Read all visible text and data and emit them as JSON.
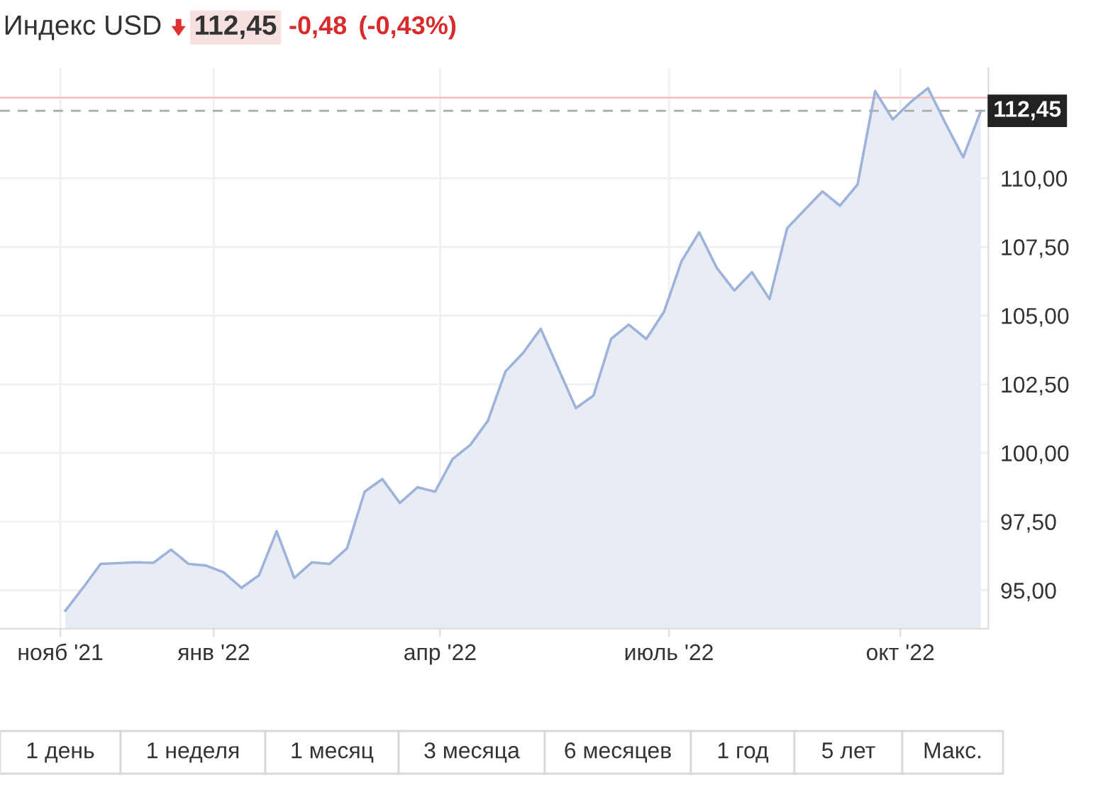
{
  "chart_data": {
    "type": "area",
    "title": "Индекс USD",
    "subtitle": "112,45",
    "annotations": [
      "-0,48",
      "(-0,43%)",
      "1 день",
      "1 неделя",
      "1 месяц",
      "3 месяца",
      "6 месяцев",
      "1 год",
      "5 лет",
      "Макс."
    ],
    "x": [
      "2021-11-03",
      "2021-11-10",
      "2021-11-17",
      "2021-12-01",
      "2021-12-08",
      "2021-12-15",
      "2021-12-22",
      "2021-12-29",
      "2022-01-05",
      "2022-01-12",
      "2022-01-19",
      "2022-01-26",
      "2022-02-02",
      "2022-02-09",
      "2022-02-16",
      "2022-02-23",
      "2022-03-02",
      "2022-03-09",
      "2022-03-16",
      "2022-03-23",
      "2022-03-30",
      "2022-04-06",
      "2022-04-13",
      "2022-04-20",
      "2022-04-27",
      "2022-05-04",
      "2022-05-11",
      "2022-05-25",
      "2022-06-01",
      "2022-06-08",
      "2022-06-15",
      "2022-06-22",
      "2022-06-29",
      "2022-07-06",
      "2022-07-13",
      "2022-07-20",
      "2022-07-27",
      "2022-08-03",
      "2022-08-10",
      "2022-08-17",
      "2022-08-24",
      "2022-08-31",
      "2022-09-07",
      "2022-09-14",
      "2022-09-21",
      "2022-09-28",
      "2022-10-05",
      "2022-10-12",
      "2022-10-19",
      "2022-10-26",
      "2022-11-02"
    ],
    "series": [
      {
        "color": "#9db3d9",
        "values": [
          94.26,
          95.09,
          95.96,
          96.02,
          96.0,
          96.48,
          95.96,
          95.9,
          95.65,
          95.09,
          95.55,
          97.15,
          95.45,
          96.02,
          95.96,
          96.53,
          98.59,
          99.05,
          98.18,
          98.75,
          98.59,
          99.78,
          100.29,
          101.17,
          102.97,
          103.64,
          104.52,
          101.63,
          102.09,
          104.15,
          104.67,
          104.15,
          105.13,
          106.98,
          108.03,
          106.74,
          105.91,
          106.58,
          105.6,
          108.18,
          108.85,
          109.52,
          109.0,
          109.77,
          113.17,
          112.14,
          112.76,
          113.28,
          111.99,
          110.76,
          112.45
        ]
      }
    ],
    "xlim": [
      "2021-10-08",
      "2022-11-05"
    ],
    "xticks": [
      {
        "value": "2021-11-01",
        "label": "нояб '21"
      },
      {
        "value": "2022-01-01",
        "label": "янв '22"
      },
      {
        "value": "2022-04-01",
        "label": "апр '22"
      },
      {
        "value": "2022-07-01",
        "label": "июль '22"
      },
      {
        "value": "2022-10-01",
        "label": "окт '22"
      }
    ],
    "ylim": [
      93.6,
      114
    ],
    "yticks": [
      {
        "value": 95,
        "label": "95,00"
      },
      {
        "value": 97.5,
        "label": "97,50"
      },
      {
        "value": 100,
        "label": "100,00"
      },
      {
        "value": 102.5,
        "label": "102,50"
      },
      {
        "value": 105,
        "label": "105,00"
      },
      {
        "value": 107.5,
        "label": "107,50"
      },
      {
        "value": 110,
        "label": "110,00"
      }
    ],
    "ref_lines": [
      {
        "axis": "y",
        "value": 112.93,
        "color": "#f2c4c4"
      },
      {
        "axis": "y",
        "value": 112.45,
        "label": "112,45",
        "color": "#aaaaaa",
        "line_style": "dashed"
      }
    ],
    "grid": true,
    "legend": false
  }
}
